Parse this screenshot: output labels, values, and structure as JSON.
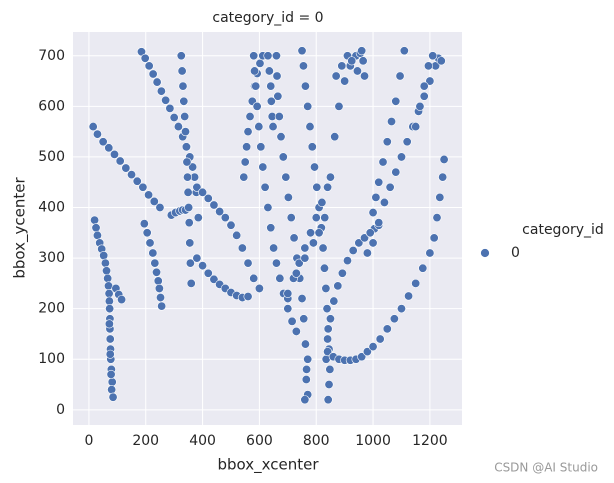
{
  "chart_data": {
    "type": "scatter",
    "title": "category_id = 0",
    "x_label": "bbox_xcenter",
    "y_label": "bbox_ycenter",
    "legend_title": "category_id",
    "xlim": [
      -56,
      1313
    ],
    "ylim": [
      -30,
      747
    ],
    "xticks": [
      0,
      200,
      400,
      600,
      800,
      1000,
      1200
    ],
    "yticks": [
      0,
      100,
      200,
      300,
      400,
      500,
      600,
      700
    ],
    "grid": true,
    "series": [
      {
        "name": "0",
        "color": "#4c72b0",
        "x": [
          15,
          30,
          50,
          70,
          90,
          110,
          130,
          150,
          170,
          190,
          210,
          230,
          250,
          290,
          305,
          320,
          330,
          340,
          20,
          25,
          30,
          38,
          45,
          52,
          58,
          62,
          66,
          69,
          71,
          72,
          73,
          74,
          74,
          75,
          76,
          77,
          79,
          82,
          95,
          105,
          115,
          72,
          75,
          78,
          80,
          85,
          195,
          205,
          215,
          225,
          232,
          238,
          244,
          248,
          252,
          256,
          185,
          198,
          212,
          226,
          240,
          255,
          270,
          285,
          300,
          315,
          330,
          345,
          355,
          365,
          372,
          378,
          385,
          325,
          328,
          331,
          334,
          337,
          340,
          343,
          345,
          347,
          349,
          351,
          353,
          355,
          357,
          360,
          380,
          400,
          420,
          440,
          460,
          480,
          500,
          520,
          540,
          560,
          380,
          400,
          420,
          440,
          460,
          480,
          500,
          520,
          540,
          560,
          580,
          600,
          545,
          550,
          555,
          560,
          567,
          575,
          583,
          592,
          602,
          612,
          580,
          583,
          587,
          592,
          598,
          605,
          612,
          620,
          630,
          640,
          650,
          660,
          672,
          685,
          700,
          715,
          730,
          630,
          635,
          640,
          642,
          645,
          648,
          660,
          662,
          665,
          670,
          676,
          684,
          693,
          702,
          712,
          722,
          732,
          742,
          750,
          756,
          762,
          766,
          770,
          750,
          755,
          762,
          770,
          778,
          786,
          794,
          802,
          810,
          818,
          824,
          829,
          834,
          838,
          842,
          845,
          760,
          765,
          770,
          700,
          720,
          740,
          760,
          780,
          800,
          820,
          840,
          848,
          845,
          842,
          835,
          840,
          850,
          862,
          876,
          892,
          910,
          930,
          950,
          970,
          990,
          1005,
          1020,
          840,
          860,
          880,
          900,
          920,
          940,
          960,
          980,
          1000,
          1025,
          1050,
          1075,
          1100,
          1125,
          1150,
          1175,
          1200,
          1215,
          1225,
          1235,
          1245,
          1250,
          980,
          990,
          1000,
          1010,
          1020,
          1035,
          1050,
          1065,
          1080,
          1095,
          1110,
          1000,
          1020,
          1040,
          1060,
          1080,
          1100,
          1120,
          1140,
          1160,
          1180,
          1200,
          1220,
          1230,
          1240,
          1150,
          1165,
          1180,
          1195,
          1210,
          850,
          865,
          880,
          900,
          920,
          940,
          955,
          870,
          890,
          910,
          925,
          945,
          960,
          965,
          970,
          700,
          730,
          760,
          790,
          810,
          830
        ],
        "values": [
          560,
          545,
          530,
          518,
          505,
          492,
          478,
          465,
          452,
          440,
          425,
          412,
          400,
          385,
          390,
          393,
          395,
          395,
          375,
          360,
          345,
          330,
          318,
          305,
          290,
          275,
          260,
          245,
          230,
          215,
          200,
          180,
          160,
          140,
          120,
          100,
          80,
          55,
          240,
          228,
          218,
          170,
          110,
          70,
          40,
          25,
          368,
          350,
          330,
          310,
          290,
          272,
          255,
          240,
          222,
          205,
          708,
          695,
          680,
          664,
          648,
          630,
          612,
          596,
          578,
          560,
          540,
          520,
          500,
          480,
          460,
          430,
          380,
          700,
          670,
          640,
          610,
          580,
          550,
          520,
          490,
          460,
          430,
          400,
          370,
          330,
          290,
          250,
          300,
          285,
          270,
          258,
          248,
          240,
          232,
          226,
          222,
          224,
          440,
          430,
          418,
          405,
          392,
          380,
          365,
          345,
          320,
          290,
          260,
          240,
          460,
          490,
          520,
          550,
          580,
          610,
          640,
          665,
          685,
          700,
          700,
          670,
          640,
          600,
          560,
          520,
          480,
          440,
          400,
          360,
          320,
          290,
          260,
          230,
          200,
          175,
          155,
          700,
          670,
          640,
          610,
          580,
          560,
          700,
          660,
          620,
          580,
          540,
          500,
          460,
          420,
          380,
          340,
          300,
          260,
          220,
          180,
          130,
          80,
          30,
          710,
          680,
          640,
          600,
          560,
          520,
          480,
          440,
          400,
          360,
          320,
          280,
          240,
          200,
          160,
          120,
          20,
          60,
          100,
          220,
          260,
          290,
          320,
          350,
          380,
          410,
          440,
          80,
          50,
          20,
          100,
          140,
          180,
          215,
          245,
          270,
          295,
          315,
          330,
          340,
          350,
          358,
          365,
          115,
          105,
          100,
          98,
          98,
          100,
          105,
          115,
          125,
          140,
          160,
          180,
          200,
          225,
          250,
          280,
          310,
          340,
          380,
          420,
          460,
          495,
          310,
          350,
          390,
          420,
          450,
          490,
          530,
          570,
          610,
          660,
          710,
          330,
          370,
          410,
          440,
          470,
          500,
          530,
          560,
          590,
          620,
          650,
          680,
          695,
          690,
          560,
          600,
          640,
          680,
          700,
          460,
          540,
          600,
          650,
          680,
          700,
          705,
          660,
          680,
          700,
          690,
          670,
          710,
          690,
          660,
          230,
          270,
          300,
          330,
          350,
          380
        ]
      }
    ]
  },
  "watermark": "CSDN @AI Studio"
}
